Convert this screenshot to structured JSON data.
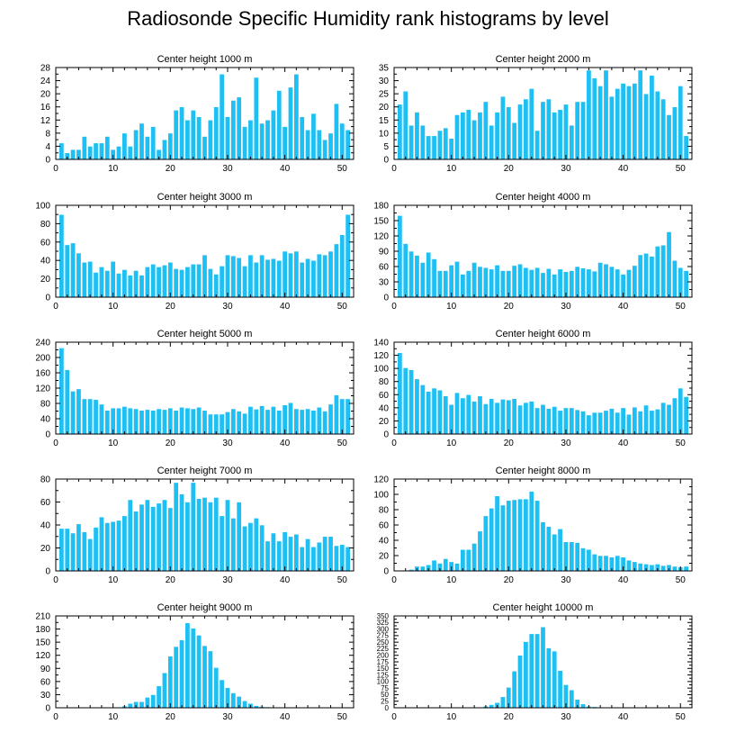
{
  "title": "Radiosonde Specific Humidity rank histograms by level",
  "colors": {
    "bar": "#1EC0F4",
    "bar_stroke": "#ffffff",
    "axis": "#000000"
  },
  "chart_data": [
    {
      "type": "bar",
      "title": "Center height 1000 m",
      "xlabel": "",
      "ylabel": "",
      "xlim": [
        0,
        52
      ],
      "ylim": [
        0,
        28
      ],
      "x_ticks": [
        0,
        10,
        20,
        30,
        40,
        50
      ],
      "y_ticks": [
        0,
        4,
        8,
        12,
        16,
        20,
        24,
        28
      ],
      "categories": [
        1,
        2,
        3,
        4,
        5,
        6,
        7,
        8,
        9,
        10,
        11,
        12,
        13,
        14,
        15,
        16,
        17,
        18,
        19,
        20,
        21,
        22,
        23,
        24,
        25,
        26,
        27,
        28,
        29,
        30,
        31,
        32,
        33,
        34,
        35,
        36,
        37,
        38,
        39,
        40,
        41,
        42,
        43,
        44,
        45,
        46,
        47,
        48,
        49,
        50,
        51
      ],
      "values": [
        5,
        2,
        3,
        3,
        7,
        4,
        5,
        5,
        7,
        3,
        4,
        8,
        4,
        9,
        11,
        7,
        10,
        3,
        6,
        8,
        15,
        16,
        12,
        15,
        13,
        7,
        12,
        16,
        26,
        13,
        18,
        19,
        10,
        12,
        25,
        11,
        12,
        15,
        21,
        10,
        22,
        26,
        13,
        9,
        14,
        9,
        6,
        8,
        17,
        11,
        9
      ]
    },
    {
      "type": "bar",
      "title": "Center height 2000 m",
      "xlabel": "",
      "ylabel": "",
      "xlim": [
        0,
        52
      ],
      "ylim": [
        0,
        35
      ],
      "x_ticks": [
        0,
        10,
        20,
        30,
        40,
        50
      ],
      "y_ticks": [
        0,
        5,
        10,
        15,
        20,
        25,
        30,
        35
      ],
      "categories": [
        1,
        2,
        3,
        4,
        5,
        6,
        7,
        8,
        9,
        10,
        11,
        12,
        13,
        14,
        15,
        16,
        17,
        18,
        19,
        20,
        21,
        22,
        23,
        24,
        25,
        26,
        27,
        28,
        29,
        30,
        31,
        32,
        33,
        34,
        35,
        36,
        37,
        38,
        39,
        40,
        41,
        42,
        43,
        44,
        45,
        46,
        47,
        48,
        49,
        50,
        51
      ],
      "values": [
        21,
        26,
        13,
        18,
        13,
        9,
        9,
        11,
        12,
        8,
        17,
        18,
        19,
        15,
        18,
        22,
        13,
        18,
        24,
        20,
        14,
        21,
        23,
        27,
        11,
        22,
        23,
        18,
        19,
        21,
        13,
        22,
        22,
        34,
        31,
        28,
        34,
        24,
        27,
        29,
        28,
        29,
        34,
        25,
        32,
        26,
        23,
        17,
        20,
        28,
        9
      ]
    },
    {
      "type": "bar",
      "title": "Center height 3000 m",
      "xlabel": "",
      "ylabel": "",
      "xlim": [
        0,
        52
      ],
      "ylim": [
        0,
        100
      ],
      "x_ticks": [
        0,
        10,
        20,
        30,
        40,
        50
      ],
      "y_ticks": [
        0,
        20,
        40,
        60,
        80,
        100
      ],
      "categories": [
        1,
        2,
        3,
        4,
        5,
        6,
        7,
        8,
        9,
        10,
        11,
        12,
        13,
        14,
        15,
        16,
        17,
        18,
        19,
        20,
        21,
        22,
        23,
        24,
        25,
        26,
        27,
        28,
        29,
        30,
        31,
        32,
        33,
        34,
        35,
        36,
        37,
        38,
        39,
        40,
        41,
        42,
        43,
        44,
        45,
        46,
        47,
        48,
        49,
        50,
        51
      ],
      "values": [
        90,
        57,
        59,
        48,
        38,
        39,
        27,
        33,
        29,
        39,
        26,
        30,
        24,
        29,
        24,
        33,
        36,
        33,
        35,
        38,
        31,
        30,
        33,
        36,
        36,
        46,
        31,
        25,
        34,
        46,
        45,
        43,
        34,
        46,
        38,
        46,
        41,
        42,
        40,
        50,
        48,
        50,
        38,
        42,
        40,
        47,
        46,
        50,
        58,
        68,
        90
      ]
    },
    {
      "type": "bar",
      "title": "Center height 4000 m",
      "xlabel": "",
      "ylabel": "",
      "xlim": [
        0,
        52
      ],
      "ylim": [
        0,
        180
      ],
      "x_ticks": [
        0,
        10,
        20,
        30,
        40,
        50
      ],
      "y_ticks": [
        0,
        30,
        60,
        90,
        120,
        150,
        180
      ],
      "categories": [
        1,
        2,
        3,
        4,
        5,
        6,
        7,
        8,
        9,
        10,
        11,
        12,
        13,
        14,
        15,
        16,
        17,
        18,
        19,
        20,
        21,
        22,
        23,
        24,
        25,
        26,
        27,
        28,
        29,
        30,
        31,
        32,
        33,
        34,
        35,
        36,
        37,
        38,
        39,
        40,
        41,
        42,
        43,
        44,
        45,
        46,
        47,
        48,
        49,
        50,
        51
      ],
      "values": [
        160,
        105,
        90,
        82,
        68,
        88,
        75,
        52,
        52,
        63,
        70,
        45,
        52,
        68,
        60,
        58,
        55,
        63,
        52,
        52,
        62,
        65,
        58,
        54,
        58,
        48,
        56,
        45,
        55,
        50,
        52,
        60,
        57,
        55,
        51,
        68,
        65,
        60,
        55,
        45,
        54,
        62,
        83,
        86,
        80,
        100,
        102,
        128,
        72,
        58,
        52
      ]
    },
    {
      "type": "bar",
      "title": "Center height 5000 m",
      "xlabel": "",
      "ylabel": "",
      "xlim": [
        0,
        52
      ],
      "ylim": [
        0,
        240
      ],
      "x_ticks": [
        0,
        10,
        20,
        30,
        40,
        50
      ],
      "y_ticks": [
        0,
        40,
        80,
        120,
        160,
        200,
        240
      ],
      "categories": [
        1,
        2,
        3,
        4,
        5,
        6,
        7,
        8,
        9,
        10,
        11,
        12,
        13,
        14,
        15,
        16,
        17,
        18,
        19,
        20,
        21,
        22,
        23,
        24,
        25,
        26,
        27,
        28,
        29,
        30,
        31,
        32,
        33,
        34,
        35,
        36,
        37,
        38,
        39,
        40,
        41,
        42,
        43,
        44,
        45,
        46,
        47,
        48,
        49,
        50,
        51
      ],
      "values": [
        225,
        168,
        112,
        118,
        92,
        92,
        90,
        78,
        62,
        68,
        68,
        72,
        68,
        66,
        62,
        64,
        62,
        66,
        64,
        68,
        62,
        70,
        68,
        66,
        70,
        62,
        52,
        52,
        52,
        58,
        66,
        60,
        54,
        72,
        65,
        74,
        64,
        72,
        62,
        76,
        82,
        66,
        64,
        66,
        62,
        70,
        60,
        78,
        102,
        92,
        92
      ]
    },
    {
      "type": "bar",
      "title": "Center height 6000 m",
      "xlabel": "",
      "ylabel": "",
      "xlim": [
        0,
        52
      ],
      "ylim": [
        0,
        140
      ],
      "x_ticks": [
        0,
        10,
        20,
        30,
        40,
        50
      ],
      "y_ticks": [
        0,
        20,
        40,
        60,
        80,
        100,
        120,
        140
      ],
      "categories": [
        1,
        2,
        3,
        4,
        5,
        6,
        7,
        8,
        9,
        10,
        11,
        12,
        13,
        14,
        15,
        16,
        17,
        18,
        19,
        20,
        21,
        22,
        23,
        24,
        25,
        26,
        27,
        28,
        29,
        30,
        31,
        32,
        33,
        34,
        35,
        36,
        37,
        38,
        39,
        40,
        41,
        42,
        43,
        44,
        45,
        46,
        47,
        48,
        49,
        50,
        51
      ],
      "values": [
        124,
        101,
        98,
        84,
        75,
        65,
        70,
        67,
        58,
        45,
        63,
        55,
        60,
        50,
        58,
        46,
        54,
        48,
        53,
        52,
        54,
        44,
        48,
        50,
        40,
        45,
        39,
        42,
        36,
        40,
        40,
        37,
        35,
        29,
        33,
        33,
        36,
        39,
        33,
        40,
        30,
        41,
        35,
        44,
        36,
        38,
        48,
        45,
        55,
        70,
        57
      ]
    },
    {
      "type": "bar",
      "title": "Center height 7000 m",
      "xlabel": "",
      "ylabel": "",
      "xlim": [
        0,
        52
      ],
      "ylim": [
        0,
        80
      ],
      "x_ticks": [
        0,
        10,
        20,
        30,
        40,
        50
      ],
      "y_ticks": [
        0,
        20,
        40,
        60,
        80
      ],
      "categories": [
        1,
        2,
        3,
        4,
        5,
        6,
        7,
        8,
        9,
        10,
        11,
        12,
        13,
        14,
        15,
        16,
        17,
        18,
        19,
        20,
        21,
        22,
        23,
        24,
        25,
        26,
        27,
        28,
        29,
        30,
        31,
        32,
        33,
        34,
        35,
        36,
        37,
        38,
        39,
        40,
        41,
        42,
        43,
        44,
        45,
        46,
        47,
        48,
        49,
        50,
        51
      ],
      "values": [
        37,
        37,
        33,
        41,
        34,
        28,
        38,
        47,
        42,
        43,
        44,
        48,
        62,
        52,
        58,
        62,
        56,
        59,
        62,
        55,
        77,
        67,
        60,
        77,
        63,
        64,
        60,
        64,
        48,
        62,
        46,
        60,
        39,
        42,
        46,
        40,
        26,
        33,
        26,
        34,
        30,
        32,
        21,
        28,
        21,
        25,
        30,
        30,
        22,
        23,
        21
      ]
    },
    {
      "type": "bar",
      "title": "Center height 8000 m",
      "xlabel": "",
      "ylabel": "",
      "xlim": [
        0,
        52
      ],
      "ylim": [
        0,
        120
      ],
      "x_ticks": [
        0,
        10,
        20,
        30,
        40,
        50
      ],
      "y_ticks": [
        0,
        20,
        40,
        60,
        80,
        100,
        120
      ],
      "categories": [
        1,
        2,
        3,
        4,
        5,
        6,
        7,
        8,
        9,
        10,
        11,
        12,
        13,
        14,
        15,
        16,
        17,
        18,
        19,
        20,
        21,
        22,
        23,
        24,
        25,
        26,
        27,
        28,
        29,
        30,
        31,
        32,
        33,
        34,
        35,
        36,
        37,
        38,
        39,
        40,
        41,
        42,
        43,
        44,
        45,
        46,
        47,
        48,
        49,
        50,
        51
      ],
      "values": [
        0,
        1,
        2,
        6,
        6,
        8,
        14,
        10,
        16,
        12,
        10,
        28,
        28,
        36,
        52,
        72,
        82,
        98,
        86,
        92,
        93,
        94,
        94,
        104,
        92,
        64,
        58,
        48,
        55,
        38,
        38,
        37,
        30,
        28,
        22,
        20,
        20,
        18,
        20,
        18,
        14,
        12,
        10,
        9,
        8,
        9,
        7,
        8,
        6,
        5,
        6
      ]
    },
    {
      "type": "bar",
      "title": "Center height 9000 m",
      "xlabel": "",
      "ylabel": "",
      "xlim": [
        0,
        52
      ],
      "ylim": [
        0,
        210
      ],
      "x_ticks": [
        0,
        10,
        20,
        30,
        40,
        50
      ],
      "y_ticks": [
        0,
        30,
        60,
        90,
        120,
        150,
        180,
        210
      ],
      "categories": [
        1,
        2,
        3,
        4,
        5,
        6,
        7,
        8,
        9,
        10,
        11,
        12,
        13,
        14,
        15,
        16,
        17,
        18,
        19,
        20,
        21,
        22,
        23,
        24,
        25,
        26,
        27,
        28,
        29,
        30,
        31,
        32,
        33,
        34,
        35,
        36,
        37,
        38,
        39,
        40,
        41,
        42,
        43,
        44,
        45,
        46,
        47,
        48,
        49,
        50,
        51
      ],
      "values": [
        0,
        0,
        0,
        0,
        0,
        0,
        0,
        0,
        0,
        0,
        0,
        4,
        10,
        14,
        14,
        24,
        30,
        50,
        80,
        118,
        140,
        155,
        194,
        182,
        166,
        142,
        130,
        92,
        64,
        46,
        34,
        26,
        16,
        10,
        5,
        3,
        2,
        1,
        0,
        0,
        0,
        0,
        0,
        0,
        0,
        0,
        0,
        0,
        0,
        0,
        0
      ]
    },
    {
      "type": "bar",
      "title": "Center height 10000 m",
      "xlabel": "",
      "ylabel": "",
      "xlim": [
        0,
        52
      ],
      "ylim": [
        0,
        350
      ],
      "x_ticks": [
        0,
        10,
        20,
        30,
        40,
        50
      ],
      "y_ticks": [
        0,
        25,
        50,
        75,
        100,
        125,
        150,
        175,
        200,
        225,
        250,
        275,
        300,
        325,
        350
      ],
      "categories": [
        1,
        2,
        3,
        4,
        5,
        6,
        7,
        8,
        9,
        10,
        11,
        12,
        13,
        14,
        15,
        16,
        17,
        18,
        19,
        20,
        21,
        22,
        23,
        24,
        25,
        26,
        27,
        28,
        29,
        30,
        31,
        32,
        33,
        34,
        35,
        36,
        37,
        38,
        39,
        40,
        41,
        42,
        43,
        44,
        45,
        46,
        47,
        48,
        49,
        50,
        51
      ],
      "values": [
        0,
        0,
        0,
        0,
        0,
        0,
        0,
        0,
        0,
        0,
        0,
        0,
        0,
        0,
        0,
        6,
        12,
        20,
        42,
        78,
        140,
        200,
        252,
        282,
        282,
        308,
        228,
        216,
        142,
        88,
        68,
        32,
        15,
        6,
        4,
        2,
        0,
        0,
        0,
        0,
        0,
        0,
        0,
        0,
        0,
        0,
        0,
        0,
        0,
        0,
        0
      ]
    }
  ]
}
